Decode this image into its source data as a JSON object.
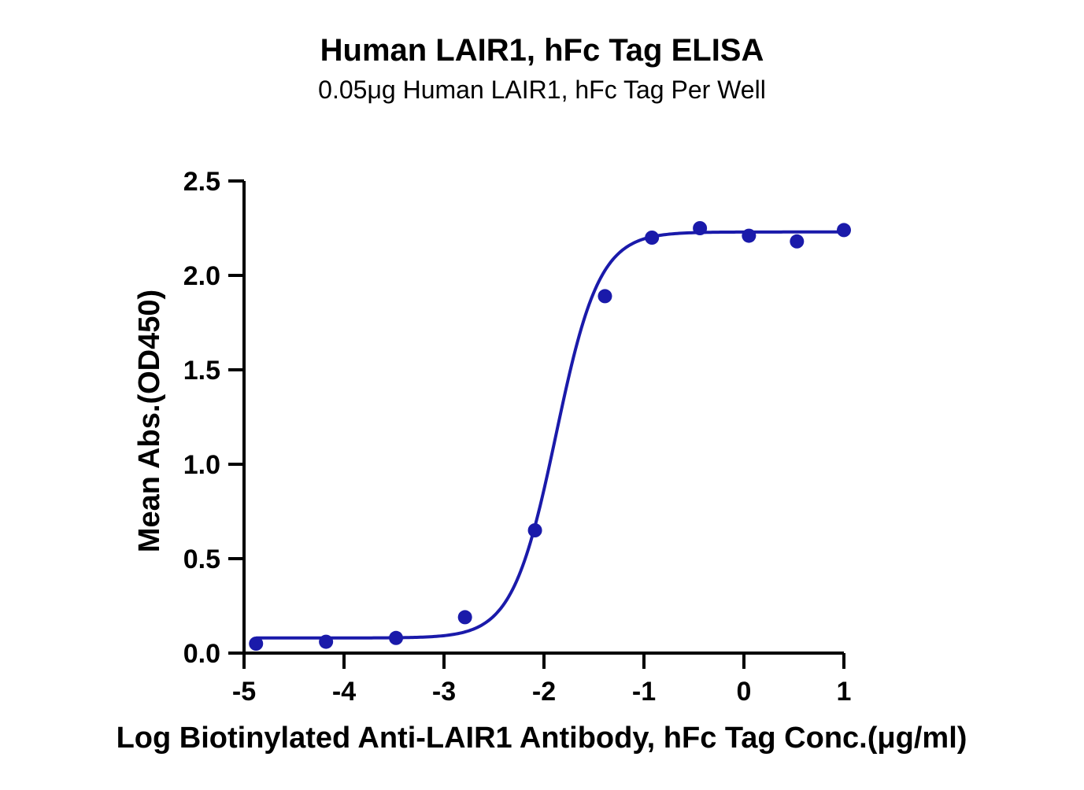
{
  "chart_data": {
    "type": "scatter",
    "title": "Human LAIR1, hFc Tag ELISA",
    "subtitle": "0.05μg Human LAIR1, hFc Tag Per Well",
    "xlabel": "Log Biotinylated Anti-LAIR1 Antibody, hFc Tag Conc.(μg/ml)",
    "ylabel": "Mean Abs.(OD450)",
    "xlim": [
      -5,
      1
    ],
    "ylim": [
      0,
      2.5
    ],
    "x_ticks": [
      -5,
      -4,
      -3,
      -2,
      -1,
      0,
      1
    ],
    "x_tick_labels": [
      "-5",
      "-4",
      "-3",
      "-2",
      "-1",
      "0",
      "1"
    ],
    "y_ticks": [
      0,
      0.5,
      1.0,
      1.5,
      2.0,
      2.5
    ],
    "y_tick_labels": [
      "0.0",
      "0.5",
      "1.0",
      "1.5",
      "2.0",
      "2.5"
    ],
    "grid": false,
    "color": "#1a1aaa",
    "series": [
      {
        "x": [
          -4.88,
          -4.18,
          -3.48,
          -2.79,
          -2.09,
          -1.39,
          -0.92,
          -0.44,
          0.05,
          0.53,
          1.0
        ],
        "y": [
          0.05,
          0.06,
          0.08,
          0.19,
          0.65,
          1.89,
          2.2,
          2.25,
          2.21,
          2.18,
          2.24
        ]
      }
    ],
    "fit": {
      "model": "4PL",
      "bottom": 0.08,
      "top": 2.23,
      "logEC50": -1.88,
      "hill": 2.0,
      "x_range": [
        -4.88,
        1.0
      ]
    }
  }
}
